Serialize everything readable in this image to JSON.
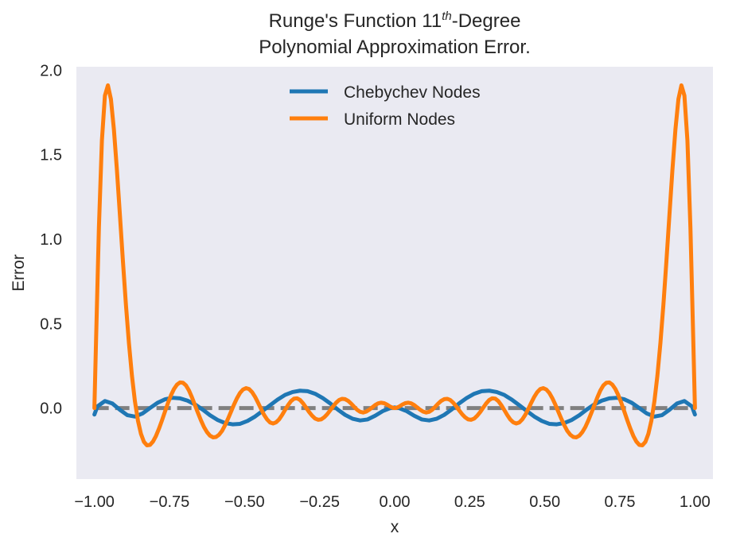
{
  "chart_data": {
    "type": "line",
    "title_line1_pre": "Runge's Function 11",
    "title_line1_sup": "th",
    "title_line1_post": "-Degree",
    "title_line2": "Polynomial Approximation Error.",
    "xlabel": "x",
    "ylabel": "Error",
    "xlim": [
      -1.06,
      1.06
    ],
    "ylim": [
      -0.42,
      2.02
    ],
    "x_ticks": [
      {
        "value": -1.0,
        "label": "−1.00"
      },
      {
        "value": -0.75,
        "label": "−0.75"
      },
      {
        "value": -0.5,
        "label": "−0.50"
      },
      {
        "value": -0.25,
        "label": "−0.25"
      },
      {
        "value": 0.0,
        "label": "0.00"
      },
      {
        "value": 0.25,
        "label": "0.25"
      },
      {
        "value": 0.5,
        "label": "0.50"
      },
      {
        "value": 0.75,
        "label": "0.75"
      },
      {
        "value": 1.0,
        "label": "1.00"
      }
    ],
    "y_ticks": [
      {
        "value": 0.0,
        "label": "0.0"
      },
      {
        "value": 0.5,
        "label": "0.5"
      },
      {
        "value": 1.0,
        "label": "1.0"
      },
      {
        "value": 1.5,
        "label": "1.5"
      },
      {
        "value": 2.0,
        "label": "2.0"
      }
    ],
    "grid": false,
    "legend_position": "top-center",
    "background_color": "#eaeaf2",
    "series": [
      {
        "name": "Chebychev Nodes",
        "color": "#1f77b4",
        "x": [
          -1.0,
          -0.99,
          -0.965,
          -0.94,
          -0.915,
          -0.89,
          -0.865,
          -0.84,
          -0.815,
          -0.79,
          -0.765,
          -0.74,
          -0.715,
          -0.69,
          -0.665,
          -0.64,
          -0.615,
          -0.59,
          -0.565,
          -0.54,
          -0.515,
          -0.49,
          -0.465,
          -0.44,
          -0.415,
          -0.39,
          -0.365,
          -0.34,
          -0.315,
          -0.29,
          -0.265,
          -0.24,
          -0.215,
          -0.19,
          -0.165,
          -0.14,
          -0.115,
          -0.09,
          -0.065,
          -0.04,
          -0.015,
          0.0,
          0.015,
          0.04,
          0.065,
          0.09,
          0.115,
          0.14,
          0.165,
          0.19,
          0.215,
          0.24,
          0.265,
          0.29,
          0.315,
          0.34,
          0.365,
          0.39,
          0.415,
          0.44,
          0.465,
          0.49,
          0.515,
          0.54,
          0.565,
          0.59,
          0.615,
          0.64,
          0.665,
          0.69,
          0.715,
          0.74,
          0.765,
          0.79,
          0.815,
          0.84,
          0.865,
          0.89,
          0.915,
          0.94,
          0.965,
          0.99,
          1.0
        ],
        "y": [
          -0.038,
          0.01,
          0.042,
          0.027,
          -0.01,
          -0.042,
          -0.05,
          -0.032,
          0.0,
          0.031,
          0.052,
          0.061,
          0.058,
          0.044,
          0.022,
          -0.008,
          -0.042,
          -0.07,
          -0.088,
          -0.096,
          -0.093,
          -0.076,
          -0.05,
          -0.017,
          0.017,
          0.05,
          0.078,
          0.095,
          0.103,
          0.1,
          0.085,
          0.06,
          0.028,
          -0.008,
          -0.04,
          -0.063,
          -0.073,
          -0.067,
          -0.045,
          -0.018,
          0.0,
          0.004,
          0.0,
          -0.018,
          -0.045,
          -0.067,
          -0.073,
          -0.063,
          -0.04,
          -0.008,
          0.028,
          0.06,
          0.085,
          0.1,
          0.103,
          0.095,
          0.078,
          0.05,
          0.017,
          -0.017,
          -0.05,
          -0.076,
          -0.093,
          -0.096,
          -0.088,
          -0.07,
          -0.042,
          -0.008,
          0.022,
          0.044,
          0.058,
          0.061,
          0.052,
          0.031,
          0.0,
          -0.032,
          -0.05,
          -0.042,
          -0.01,
          0.027,
          0.042,
          0.01,
          -0.038
        ]
      },
      {
        "name": "Uniform Nodes",
        "color": "#ff7f0e",
        "x": [
          -1.0,
          -0.995,
          -0.985,
          -0.975,
          -0.965,
          -0.955,
          -0.945,
          -0.935,
          -0.925,
          -0.915,
          -0.905,
          -0.895,
          -0.885,
          -0.875,
          -0.865,
          -0.855,
          -0.845,
          -0.835,
          -0.825,
          -0.815,
          -0.805,
          -0.795,
          -0.785,
          -0.775,
          -0.765,
          -0.755,
          -0.745,
          -0.735,
          -0.725,
          -0.715,
          -0.705,
          -0.695,
          -0.685,
          -0.675,
          -0.665,
          -0.655,
          -0.645,
          -0.635,
          -0.625,
          -0.615,
          -0.605,
          -0.595,
          -0.585,
          -0.575,
          -0.565,
          -0.555,
          -0.545,
          -0.535,
          -0.525,
          -0.515,
          -0.505,
          -0.495,
          -0.485,
          -0.475,
          -0.465,
          -0.455,
          -0.445,
          -0.435,
          -0.425,
          -0.415,
          -0.405,
          -0.395,
          -0.385,
          -0.375,
          -0.365,
          -0.355,
          -0.345,
          -0.335,
          -0.325,
          -0.315,
          -0.305,
          -0.295,
          -0.285,
          -0.275,
          -0.265,
          -0.255,
          -0.245,
          -0.235,
          -0.225,
          -0.215,
          -0.205,
          -0.195,
          -0.185,
          -0.175,
          -0.165,
          -0.155,
          -0.145,
          -0.135,
          -0.125,
          -0.115,
          -0.105,
          -0.095,
          -0.085,
          -0.075,
          -0.065,
          -0.055,
          -0.045,
          -0.035,
          -0.025,
          -0.015,
          -0.005,
          0.005,
          0.015,
          0.025,
          0.035,
          0.045,
          0.055,
          0.065,
          0.075,
          0.085,
          0.095,
          0.105,
          0.115,
          0.125,
          0.135,
          0.145,
          0.155,
          0.165,
          0.175,
          0.185,
          0.195,
          0.205,
          0.215,
          0.225,
          0.235,
          0.245,
          0.255,
          0.265,
          0.275,
          0.285,
          0.295,
          0.305,
          0.315,
          0.325,
          0.335,
          0.345,
          0.355,
          0.365,
          0.375,
          0.385,
          0.395,
          0.405,
          0.415,
          0.425,
          0.435,
          0.445,
          0.455,
          0.465,
          0.475,
          0.485,
          0.495,
          0.505,
          0.515,
          0.525,
          0.535,
          0.545,
          0.555,
          0.565,
          0.575,
          0.585,
          0.595,
          0.605,
          0.615,
          0.625,
          0.635,
          0.645,
          0.655,
          0.665,
          0.675,
          0.685,
          0.695,
          0.705,
          0.715,
          0.725,
          0.735,
          0.745,
          0.755,
          0.765,
          0.775,
          0.785,
          0.795,
          0.805,
          0.815,
          0.825,
          0.835,
          0.845,
          0.855,
          0.865,
          0.875,
          0.885,
          0.895,
          0.905,
          0.915,
          0.925,
          0.935,
          0.945,
          0.955,
          0.965,
          0.975,
          0.985,
          0.995,
          1.0
        ],
        "y": [
          0.0,
          0.366,
          1.068,
          1.584,
          1.849,
          1.91,
          1.828,
          1.648,
          1.409,
          1.141,
          0.869,
          0.612,
          0.384,
          0.192,
          0.04,
          -0.074,
          -0.152,
          -0.2,
          -0.22,
          -0.218,
          -0.198,
          -0.165,
          -0.122,
          -0.073,
          -0.021,
          0.03,
          0.076,
          0.113,
          0.139,
          0.152,
          0.15,
          0.134,
          0.104,
          0.063,
          0.017,
          -0.029,
          -0.073,
          -0.112,
          -0.142,
          -0.163,
          -0.173,
          -0.171,
          -0.158,
          -0.135,
          -0.102,
          -0.063,
          -0.021,
          0.021,
          0.059,
          0.09,
          0.11,
          0.118,
          0.113,
          0.095,
          0.067,
          0.032,
          -0.005,
          -0.04,
          -0.067,
          -0.085,
          -0.091,
          -0.084,
          -0.067,
          -0.041,
          -0.011,
          0.018,
          0.042,
          0.056,
          0.058,
          0.048,
          0.028,
          0.003,
          -0.023,
          -0.045,
          -0.062,
          -0.069,
          -0.067,
          -0.055,
          -0.037,
          -0.014,
          0.01,
          0.032,
          0.048,
          0.055,
          0.053,
          0.043,
          0.027,
          0.008,
          -0.01,
          -0.022,
          -0.026,
          -0.021,
          -0.01,
          0.004,
          0.018,
          0.028,
          0.032,
          0.029,
          0.02,
          0.009,
          0.001,
          0.001,
          0.009,
          0.02,
          0.029,
          0.032,
          0.028,
          0.018,
          0.004,
          -0.01,
          -0.021,
          -0.026,
          -0.022,
          -0.01,
          0.008,
          0.027,
          0.043,
          0.053,
          0.055,
          0.048,
          0.032,
          0.01,
          -0.014,
          -0.037,
          -0.055,
          -0.067,
          -0.069,
          -0.062,
          -0.045,
          -0.023,
          0.003,
          0.028,
          0.048,
          0.058,
          0.056,
          0.042,
          0.018,
          -0.011,
          -0.041,
          -0.067,
          -0.084,
          -0.091,
          -0.085,
          -0.067,
          -0.04,
          -0.005,
          0.032,
          0.067,
          0.095,
          0.113,
          0.118,
          0.11,
          0.09,
          0.059,
          0.021,
          -0.021,
          -0.063,
          -0.102,
          -0.135,
          -0.158,
          -0.171,
          -0.173,
          -0.163,
          -0.142,
          -0.112,
          -0.073,
          -0.029,
          0.017,
          0.063,
          0.104,
          0.134,
          0.15,
          0.152,
          0.139,
          0.113,
          0.076,
          0.03,
          -0.021,
          -0.073,
          -0.122,
          -0.165,
          -0.198,
          -0.218,
          -0.22,
          -0.2,
          -0.152,
          -0.074,
          0.04,
          0.192,
          0.384,
          0.612,
          0.869,
          1.141,
          1.409,
          1.648,
          1.828,
          1.91,
          1.849,
          1.584,
          1.068,
          0.366,
          0.0
        ]
      }
    ],
    "reference_line": {
      "y": 0.0,
      "style": "dashed",
      "color": "#808080"
    }
  }
}
